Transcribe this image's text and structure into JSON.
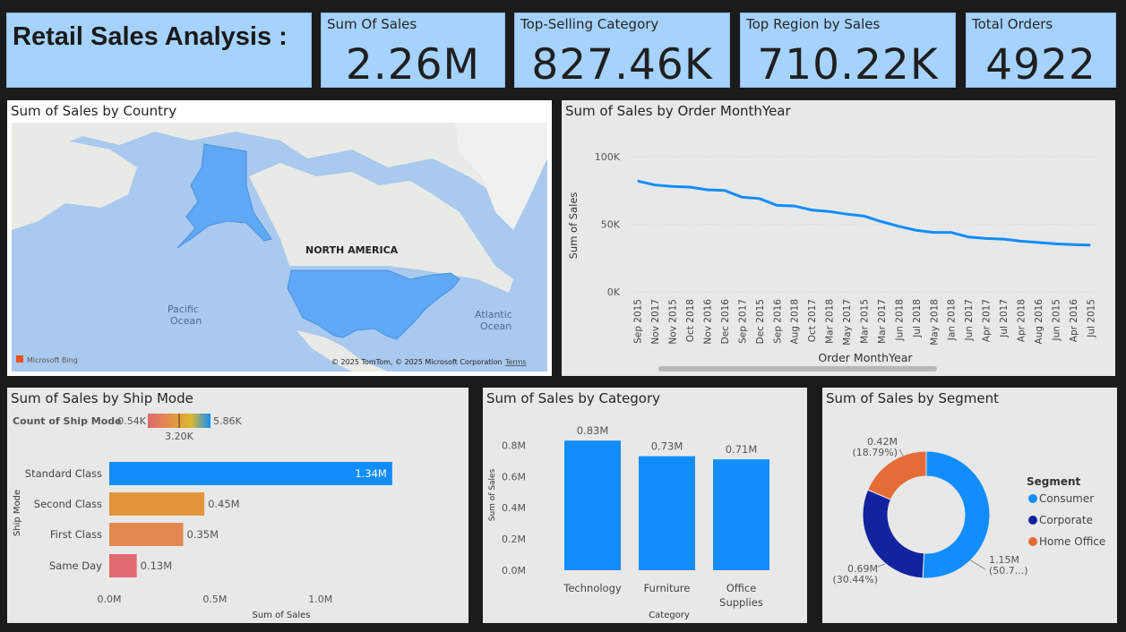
{
  "title": "Retail Sales Analysis :",
  "kpis": [
    {
      "title": "Sum Of Sales",
      "value": "2.26M"
    },
    {
      "title": "Top-Selling Category",
      "value": "827.46K"
    },
    {
      "title": "Top Region by Sales",
      "value": "710.22K"
    },
    {
      "title": "Total Orders",
      "value": "4922"
    }
  ],
  "map": {
    "title": "Sum of Sales by Country",
    "labels": {
      "region": "NORTH AMERICA",
      "pacific": [
        "Pacific",
        "Ocean"
      ],
      "atlantic": [
        "Atlantic",
        "Ocean"
      ]
    },
    "bing": "Microsoft Bing",
    "copyright": "© 2025 TomTom, © 2025 Microsoft Corporation",
    "terms": "Terms"
  },
  "colors": {
    "blue": "#118dff",
    "navy": "#12239e",
    "orange": "#e66c37",
    "shipOrange1": "#e3943a",
    "shipOrange2": "#e38850",
    "shipRed": "#e0686f"
  },
  "chart_data": [
    {
      "type": "line",
      "title": "Sum of Sales by Order MonthYear",
      "xlabel": "Order MonthYear",
      "ylabel": "Sum of Sales",
      "ylim": [
        0,
        100000
      ],
      "yticks": [
        {
          "v": 0,
          "label": "0K"
        },
        {
          "v": 50000,
          "label": "50K"
        },
        {
          "v": 100000,
          "label": "100K"
        }
      ],
      "categories": [
        "Sep 2015",
        "Nov 2017",
        "Nov 2015",
        "Oct 2018",
        "Nov 2016",
        "Dec 2016",
        "Sep 2017",
        "Dec 2015",
        "Sep 2016",
        "Aug 2018",
        "Oct 2017",
        "Mar 2018",
        "May 2017",
        "Mar 2015",
        "Mar 2017",
        "Jun 2018",
        "Jul 2018",
        "May 2018",
        "Jan 2018",
        "Jun 2017",
        "Apr 2017",
        "Jul 2017",
        "Apr 2018",
        "Aug 2016",
        "Jun 2015",
        "Apr 2016",
        "Jul 2015"
      ],
      "values": [
        82000,
        79000,
        78000,
        77500,
        75500,
        75000,
        70000,
        69000,
        64000,
        63500,
        60500,
        59500,
        57500,
        56000,
        52000,
        48500,
        45500,
        44000,
        44000,
        40500,
        39500,
        39000,
        37500,
        36500,
        35500,
        35000,
        34500
      ]
    },
    {
      "type": "bar",
      "title": "Sum of Sales by Ship Mode",
      "xlabel": "Sum of Sales",
      "ylabel": "Ship Mode",
      "legend": {
        "title": "Count of Ship Mode",
        "min": "0.54K",
        "mid": "3.20K",
        "max": "5.86K"
      },
      "xlim": [
        0,
        1400000
      ],
      "xticks": [
        {
          "v": 0,
          "label": "0.0M"
        },
        {
          "v": 500000,
          "label": "0.5M"
        },
        {
          "v": 1000000,
          "label": "1.0M"
        }
      ],
      "categories": [
        "Standard Class",
        "Second Class",
        "First Class",
        "Same Day"
      ],
      "values": [
        1340000,
        450000,
        350000,
        130000
      ],
      "data_labels": [
        "1.34M",
        "0.45M",
        "0.35M",
        "0.13M"
      ]
    },
    {
      "type": "bar",
      "title": "Sum of Sales by Category",
      "xlabel": "Category",
      "ylabel": "Sum of Sales",
      "ylim": [
        0,
        0.9
      ],
      "yticks": [
        {
          "v": 0,
          "label": "0.0M"
        },
        {
          "v": 0.2,
          "label": "0.2M"
        },
        {
          "v": 0.4,
          "label": "0.4M"
        },
        {
          "v": 0.6,
          "label": "0.6M"
        },
        {
          "v": 0.8,
          "label": "0.8M"
        }
      ],
      "categories": [
        [
          "Technology"
        ],
        [
          "Furniture"
        ],
        [
          "Office",
          "Supplies"
        ]
      ],
      "values": [
        0.83,
        0.73,
        0.71
      ],
      "data_labels": [
        "0.83M",
        "0.73M",
        "0.71M"
      ]
    },
    {
      "type": "pie",
      "title": "Sum of Sales by Segment",
      "legend_title": "Segment",
      "categories": [
        "Consumer",
        "Corporate",
        "Home Office"
      ],
      "values": [
        1.15,
        0.69,
        0.42
      ],
      "percents": [
        50.77,
        30.44,
        18.79
      ],
      "data_labels": [
        [
          "1.15M",
          "(50.7...)"
        ],
        [
          "0.69M",
          "(30.44%)"
        ],
        [
          "0.42M",
          "(18.79%)"
        ]
      ]
    }
  ]
}
